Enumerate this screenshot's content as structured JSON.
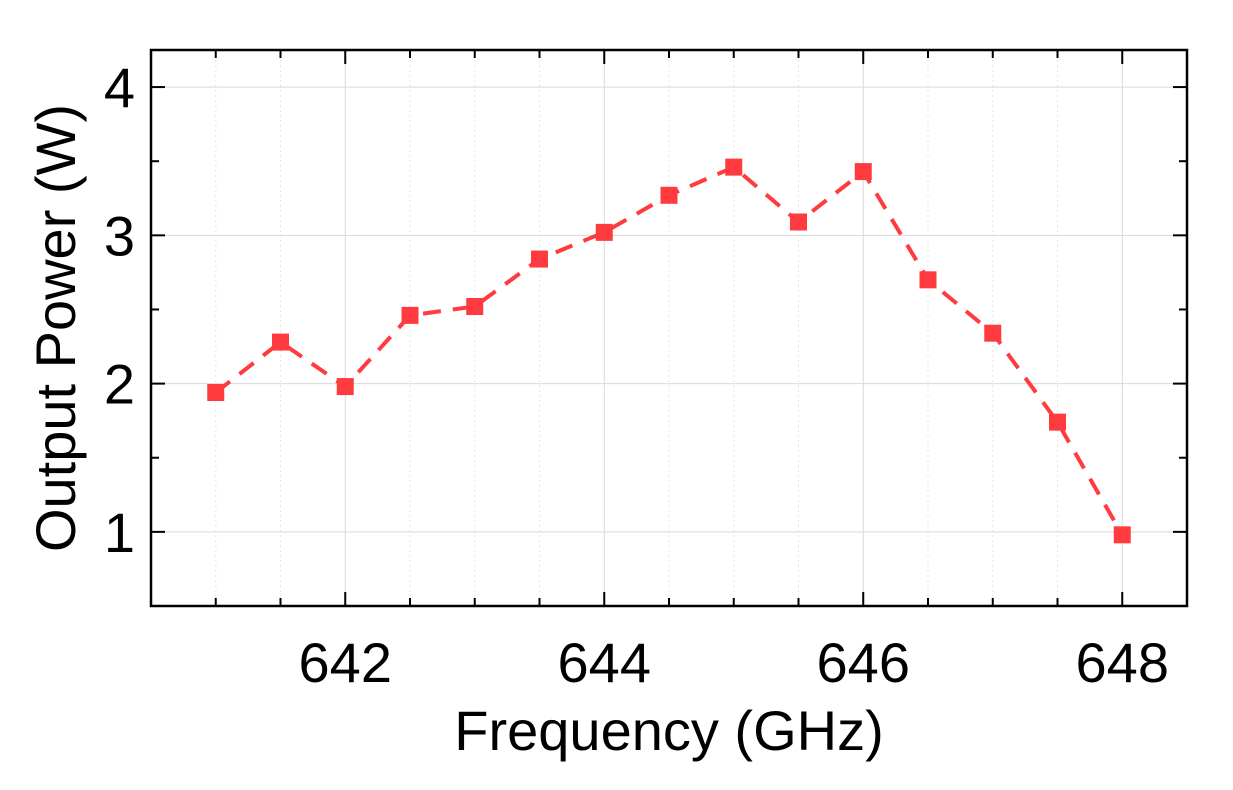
{
  "chart_data": {
    "type": "line",
    "xlabel": "Frequency (GHz)",
    "ylabel": "Output Power (W)",
    "xlim": [
      640.5,
      648.5
    ],
    "ylim": [
      0.5,
      4.25
    ],
    "x_ticks": [
      642,
      644,
      646,
      648
    ],
    "y_ticks": [
      1,
      2,
      3,
      4
    ],
    "grid": true,
    "series": [
      {
        "color": "#ff3b3f",
        "line_style": "dashed",
        "marker": "square",
        "x": [
          641,
          641.5,
          642,
          642.5,
          643,
          643.5,
          644,
          644.5,
          645,
          645.5,
          646,
          646.5,
          647,
          647.5,
          648
        ],
        "y": [
          1.94,
          2.28,
          1.98,
          2.46,
          2.52,
          2.84,
          3.02,
          3.27,
          3.46,
          3.09,
          3.43,
          2.7,
          2.34,
          1.74,
          0.98
        ]
      }
    ]
  }
}
